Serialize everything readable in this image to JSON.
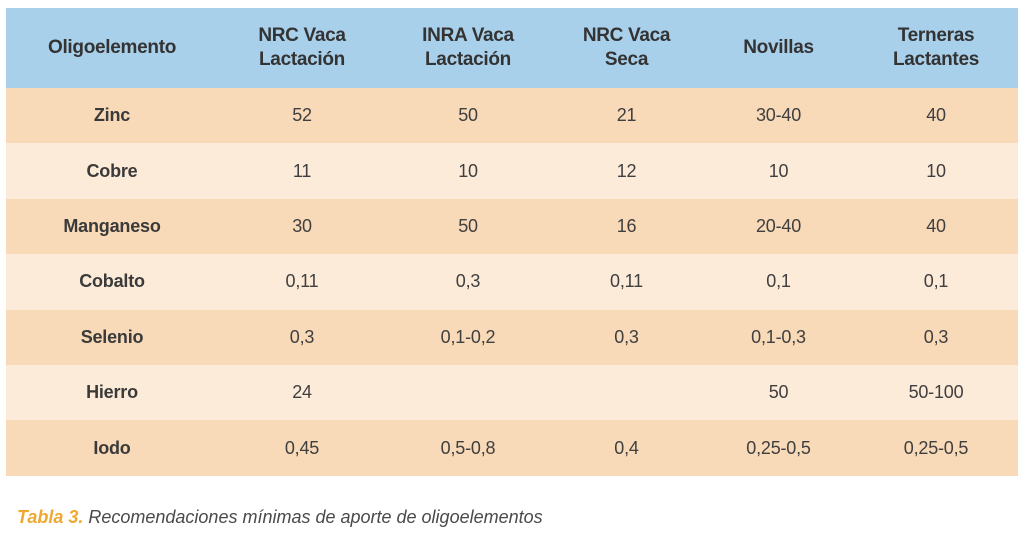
{
  "table": {
    "headers": [
      "Oligoelemento",
      "NRC Vaca\nLactación",
      "INRA Vaca\nLactación",
      "NRC Vaca\nSeca",
      "Novillas",
      "Terneras\nLactantes"
    ],
    "rows": [
      [
        "Zinc",
        "52",
        "50",
        "21",
        "30-40",
        "40"
      ],
      [
        "Cobre",
        "11",
        "10",
        "12",
        "10",
        "10"
      ],
      [
        "Manganeso",
        "30",
        "50",
        "16",
        "20-40",
        "40"
      ],
      [
        "Cobalto",
        "0,11",
        "0,3",
        "0,11",
        "0,1",
        "0,1"
      ],
      [
        "Selenio",
        "0,3",
        "0,1-0,2",
        "0,3",
        "0,1-0,3",
        "0,3"
      ],
      [
        "Hierro",
        "24",
        "",
        "",
        "50",
        "50-100"
      ],
      [
        "Iodo",
        "0,45",
        "0,5-0,8",
        "0,4",
        "0,25-0,5",
        "0,25-0,5"
      ]
    ]
  },
  "caption": {
    "label": "Tabla 3.",
    "text": "Recomendaciones mínimas de aporte de oligoelementos"
  },
  "colors": {
    "header_bg": "#a9d0eb",
    "row_odd_bg": "#f8d9b8",
    "row_even_bg": "#fdebd9",
    "caption_label": "#f0a830"
  }
}
